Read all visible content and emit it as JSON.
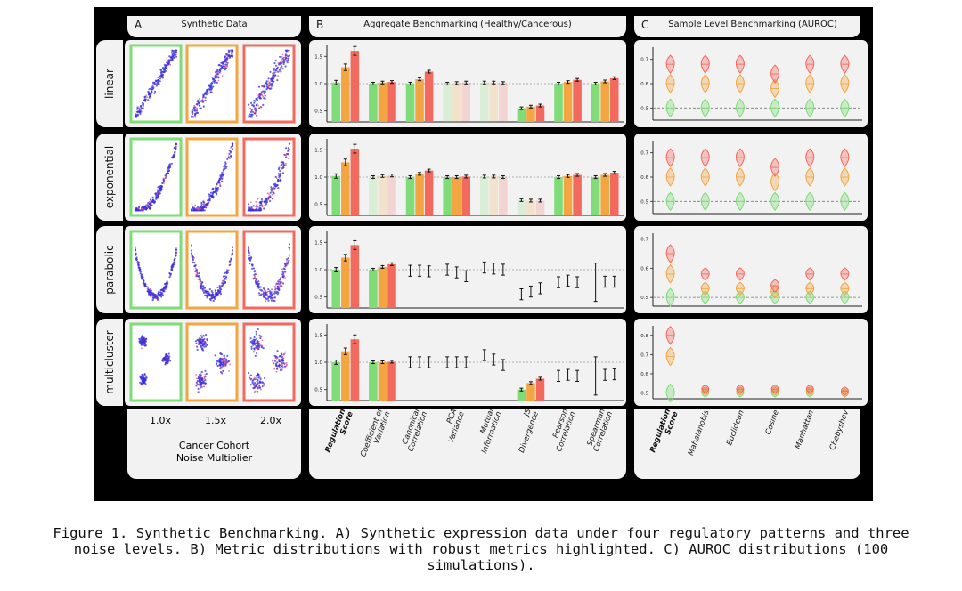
{
  "panelA": {
    "letter": "A",
    "title": "Synthetic Data",
    "noise_levels": [
      "1.0x",
      "1.5x",
      "2.0x"
    ],
    "xlabel_line1": "Cancer Cohort",
    "xlabel_line2": "Noise Multiplier"
  },
  "panelB": {
    "letter": "B",
    "title": "Aggregate Benchmarking (Healthy/Cancerous)"
  },
  "panelC": {
    "letter": "C",
    "title": "Sample Level Benchmarking (AUROC)"
  },
  "rows": [
    "linear",
    "exponential",
    "parabolic",
    "multicluster"
  ],
  "colors": {
    "low": "#7fdc78",
    "mid": "#f2a540",
    "high": "#f26a5e",
    "panel_bg": "#f2f2f2"
  },
  "caption": {
    "line1": "Figure 1.  Synthetic Benchmarking. A) Synthetic expression data under four regulatory patterns and three",
    "line2": "noise levels. B) Metric distributions with robust metrics highlighted. C) AUROC distributions (100",
    "line3": "simulations)."
  },
  "chart_data": [
    {
      "type": "bar",
      "title": "Aggregate Benchmarking (Healthy/Cancerous)",
      "categories": [
        "Regulation Score",
        "Coefficient of Variation",
        "Canonical Correlation",
        "PCA Variance",
        "Mutual Information",
        "JS Divergence",
        "Pearson Correlation",
        "Spearman Correlation"
      ],
      "noise_series": [
        "1.0x",
        "1.5x",
        "2.0x"
      ],
      "yticks": [
        0.5,
        1.0,
        1.5
      ],
      "ylim": [
        0.3,
        1.7
      ],
      "panels": [
        {
          "pattern": "linear",
          "robust": [
            true,
            true,
            true,
            false,
            false,
            true,
            true,
            true
          ],
          "values": [
            [
              1.02,
              1.3,
              1.6
            ],
            [
              1.0,
              1.02,
              1.03
            ],
            [
              1.0,
              1.08,
              1.22
            ],
            [
              1.0,
              1.01,
              1.02
            ],
            [
              1.02,
              1.02,
              1.01
            ],
            [
              0.55,
              0.58,
              0.6
            ],
            [
              1.0,
              1.03,
              1.07
            ],
            [
              1.0,
              1.04,
              1.1
            ]
          ]
        },
        {
          "pattern": "exponential",
          "robust": [
            true,
            false,
            true,
            true,
            false,
            false,
            true,
            true
          ],
          "values": [
            [
              1.02,
              1.27,
              1.52
            ],
            [
              1.0,
              1.02,
              1.03
            ],
            [
              1.0,
              1.06,
              1.12
            ],
            [
              1.0,
              1.0,
              1.01
            ],
            [
              1.01,
              1.01,
              1.0
            ],
            [
              0.58,
              0.57,
              0.57
            ],
            [
              1.0,
              1.02,
              1.04
            ],
            [
              1.0,
              1.04,
              1.08
            ]
          ]
        },
        {
          "pattern": "parabolic",
          "robust": [
            true,
            true,
            false,
            false,
            false,
            false,
            false,
            false
          ],
          "values": [
            [
              1.0,
              1.22,
              1.45
            ],
            [
              1.0,
              1.05,
              1.1
            ],
            [
              0.98,
              0.98,
              0.97
            ],
            [
              1.0,
              0.95,
              0.88
            ],
            [
              1.04,
              1.02,
              1.0
            ],
            [
              0.55,
              0.6,
              0.66
            ],
            [
              0.77,
              0.8,
              0.77
            ],
            [
              0.77,
              0.78,
              0.78
            ]
          ]
        },
        {
          "pattern": "multicluster",
          "robust": [
            true,
            true,
            false,
            false,
            false,
            true,
            false,
            false
          ],
          "values": [
            [
              1.0,
              1.2,
              1.42
            ],
            [
              1.0,
              1.0,
              1.01
            ],
            [
              1.0,
              1.0,
              1.0
            ],
            [
              1.0,
              1.0,
              1.0
            ],
            [
              1.13,
              1.05,
              0.95
            ],
            [
              0.5,
              0.62,
              0.7
            ],
            [
              0.75,
              0.77,
              0.75
            ],
            [
              0.75,
              0.77,
              0.78
            ]
          ]
        }
      ]
    },
    {
      "type": "violin",
      "title": "Sample Level Benchmarking (AUROC)",
      "categories": [
        "Regulation Score",
        "Mahalanobis",
        "Euclidean",
        "Cosine",
        "Manhattan",
        "Chebyshev"
      ],
      "noise_series": [
        "1.0x",
        "1.5x",
        "2.0x"
      ],
      "yticks": [
        0.5,
        0.6,
        0.7
      ],
      "panels": [
        {
          "pattern": "linear",
          "ylim": [
            0.45,
            0.75
          ],
          "values": [
            [
              0.5,
              0.6,
              0.68
            ],
            [
              0.5,
              0.6,
              0.68
            ],
            [
              0.5,
              0.6,
              0.68
            ],
            [
              0.5,
              0.58,
              0.64
            ],
            [
              0.5,
              0.6,
              0.68
            ],
            [
              0.5,
              0.6,
              0.68
            ]
          ]
        },
        {
          "pattern": "exponential",
          "ylim": [
            0.45,
            0.75
          ],
          "values": [
            [
              0.5,
              0.6,
              0.68
            ],
            [
              0.5,
              0.6,
              0.68
            ],
            [
              0.5,
              0.6,
              0.68
            ],
            [
              0.5,
              0.58,
              0.64
            ],
            [
              0.5,
              0.6,
              0.68
            ],
            [
              0.5,
              0.6,
              0.68
            ]
          ]
        },
        {
          "pattern": "parabolic",
          "ylim": [
            0.47,
            0.72
          ],
          "values": [
            [
              0.5,
              0.58,
              0.65
            ],
            [
              0.5,
              0.53,
              0.58
            ],
            [
              0.5,
              0.53,
              0.58
            ],
            [
              0.5,
              0.52,
              0.54
            ],
            [
              0.5,
              0.53,
              0.58
            ],
            [
              0.5,
              0.53,
              0.58
            ]
          ]
        },
        {
          "pattern": "multicluster",
          "ylim": [
            0.47,
            0.85
          ],
          "values": [
            [
              0.5,
              0.69,
              0.8
            ],
            [
              0.5,
              0.51,
              0.52
            ],
            [
              0.5,
              0.51,
              0.52
            ],
            [
              0.5,
              0.51,
              0.52
            ],
            [
              0.5,
              0.51,
              0.52
            ],
            [
              0.5,
              0.5,
              0.51
            ]
          ]
        }
      ]
    }
  ]
}
